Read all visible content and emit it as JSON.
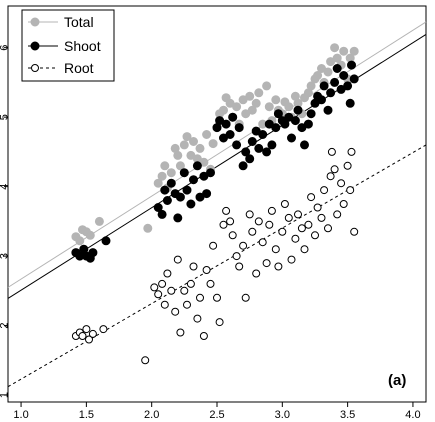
{
  "chart_data": {
    "type": "scatter",
    "title": "",
    "xlabel": "",
    "ylabel": "",
    "xlim": [
      0.9,
      4.1
    ],
    "ylim": [
      0.9,
      6.6
    ],
    "x_ticks": [
      "1.0",
      "1.5",
      "2.0",
      "2.5",
      "3.0",
      "3.5",
      "4.0"
    ],
    "y_ticks": [
      "1",
      "2",
      "3",
      "4",
      "5",
      "6"
    ],
    "legend_position": "top-left",
    "panel_label": "(a)",
    "series": [
      {
        "name": "Total",
        "marker": "filled-circle",
        "color": "#b4b4b4",
        "line_style": "solid",
        "line_color": "#b4b4b4",
        "fit": [
          0.9,
          2.55,
          4.1,
          6.37
        ],
        "points": [
          [
            1.42,
            3.28
          ],
          [
            1.45,
            3.22
          ],
          [
            1.47,
            3.38
          ],
          [
            1.5,
            3.35
          ],
          [
            1.53,
            3.3
          ],
          [
            1.48,
            3.1
          ],
          [
            1.6,
            3.5
          ],
          [
            1.97,
            3.4
          ],
          [
            2.05,
            4.05
          ],
          [
            2.08,
            4.15
          ],
          [
            2.1,
            4.3
          ],
          [
            2.12,
            3.98
          ],
          [
            2.15,
            4.2
          ],
          [
            2.18,
            4.55
          ],
          [
            2.2,
            4.45
          ],
          [
            2.22,
            4.3
          ],
          [
            2.25,
            4.6
          ],
          [
            2.27,
            4.72
          ],
          [
            2.3,
            4.45
          ],
          [
            2.32,
            4.65
          ],
          [
            2.35,
            4.4
          ],
          [
            2.37,
            4.55
          ],
          [
            2.4,
            4.35
          ],
          [
            2.42,
            4.75
          ],
          [
            2.45,
            4.25
          ],
          [
            2.47,
            4.62
          ],
          [
            2.5,
            4.85
          ],
          [
            2.52,
            5.05
          ],
          [
            2.55,
            5.1
          ],
          [
            2.57,
            5.28
          ],
          [
            2.6,
            5.2
          ],
          [
            2.62,
            5.0
          ],
          [
            2.65,
            5.15
          ],
          [
            2.67,
            4.9
          ],
          [
            2.7,
            5.25
          ],
          [
            2.72,
            5.05
          ],
          [
            2.75,
            5.3
          ],
          [
            2.77,
            5.1
          ],
          [
            2.8,
            5.2
          ],
          [
            2.82,
            5.35
          ],
          [
            2.85,
            4.9
          ],
          [
            2.88,
            5.45
          ],
          [
            2.9,
            5.15
          ],
          [
            2.92,
            4.95
          ],
          [
            2.95,
            5.25
          ],
          [
            2.97,
            5.1
          ],
          [
            3.0,
            5.05
          ],
          [
            3.02,
            5.22
          ],
          [
            3.05,
            5.15
          ],
          [
            3.07,
            5.0
          ],
          [
            3.1,
            5.3
          ],
          [
            3.12,
            5.2
          ],
          [
            3.15,
            5.05
          ],
          [
            3.17,
            5.28
          ],
          [
            3.2,
            5.35
          ],
          [
            3.22,
            5.45
          ],
          [
            3.25,
            5.55
          ],
          [
            3.27,
            5.6
          ],
          [
            3.3,
            5.7
          ],
          [
            3.32,
            5.5
          ],
          [
            3.35,
            5.65
          ],
          [
            3.37,
            5.8
          ],
          [
            3.4,
            6.0
          ],
          [
            3.42,
            5.85
          ],
          [
            3.45,
            5.75
          ],
          [
            3.47,
            5.95
          ],
          [
            3.5,
            5.55
          ],
          [
            3.52,
            5.85
          ],
          [
            3.55,
            5.95
          ]
        ]
      },
      {
        "name": "Shoot",
        "marker": "filled-circle",
        "color": "#000000",
        "line_style": "solid",
        "line_color": "#000000",
        "fit": [
          0.9,
          2.39,
          4.1,
          6.19
        ],
        "points": [
          [
            1.42,
            3.05
          ],
          [
            1.45,
            3.0
          ],
          [
            1.48,
            3.1
          ],
          [
            1.5,
            3.0
          ],
          [
            1.53,
            2.97
          ],
          [
            1.55,
            3.05
          ],
          [
            1.65,
            3.22
          ],
          [
            2.05,
            3.7
          ],
          [
            2.08,
            3.6
          ],
          [
            2.1,
            3.95
          ],
          [
            2.12,
            3.8
          ],
          [
            2.15,
            4.05
          ],
          [
            2.18,
            3.9
          ],
          [
            2.2,
            3.55
          ],
          [
            2.22,
            3.85
          ],
          [
            2.25,
            4.2
          ],
          [
            2.27,
            3.95
          ],
          [
            2.3,
            3.75
          ],
          [
            2.32,
            4.1
          ],
          [
            2.35,
            4.3
          ],
          [
            2.37,
            3.85
          ],
          [
            2.4,
            4.15
          ],
          [
            2.42,
            3.9
          ],
          [
            2.45,
            4.2
          ],
          [
            2.5,
            4.85
          ],
          [
            2.52,
            4.95
          ],
          [
            2.55,
            4.7
          ],
          [
            2.57,
            4.9
          ],
          [
            2.6,
            4.75
          ],
          [
            2.62,
            5.0
          ],
          [
            2.65,
            4.6
          ],
          [
            2.67,
            4.85
          ],
          [
            2.7,
            4.3
          ],
          [
            2.72,
            4.5
          ],
          [
            2.75,
            4.4
          ],
          [
            2.77,
            4.65
          ],
          [
            2.8,
            4.8
          ],
          [
            2.82,
            4.55
          ],
          [
            2.85,
            4.75
          ],
          [
            2.88,
            4.5
          ],
          [
            2.9,
            4.9
          ],
          [
            2.92,
            4.6
          ],
          [
            2.95,
            4.85
          ],
          [
            2.97,
            5.05
          ],
          [
            3.0,
            4.95
          ],
          [
            3.02,
            4.9
          ],
          [
            3.05,
            5.0
          ],
          [
            3.07,
            4.7
          ],
          [
            3.1,
            4.95
          ],
          [
            3.12,
            5.1
          ],
          [
            3.15,
            4.85
          ],
          [
            3.17,
            4.6
          ],
          [
            3.2,
            4.9
          ],
          [
            3.22,
            5.05
          ],
          [
            3.25,
            5.2
          ],
          [
            3.27,
            5.3
          ],
          [
            3.3,
            5.25
          ],
          [
            3.32,
            5.45
          ],
          [
            3.35,
            5.1
          ],
          [
            3.37,
            5.35
          ],
          [
            3.4,
            5.5
          ],
          [
            3.42,
            5.7
          ],
          [
            3.45,
            5.4
          ],
          [
            3.47,
            5.6
          ],
          [
            3.5,
            5.45
          ],
          [
            3.52,
            5.2
          ],
          [
            3.53,
            5.75
          ],
          [
            3.55,
            5.55
          ]
        ]
      },
      {
        "name": "Root",
        "marker": "open-circle",
        "color": "#000000",
        "line_style": "dashed",
        "line_color": "#000000",
        "fit": [
          0.9,
          1.12,
          4.1,
          4.6
        ],
        "points": [
          [
            1.42,
            1.85
          ],
          [
            1.45,
            1.9
          ],
          [
            1.47,
            1.85
          ],
          [
            1.5,
            1.95
          ],
          [
            1.52,
            1.8
          ],
          [
            1.55,
            1.88
          ],
          [
            1.63,
            1.95
          ],
          [
            1.95,
            1.5
          ],
          [
            2.02,
            2.55
          ],
          [
            2.05,
            2.45
          ],
          [
            2.08,
            2.6
          ],
          [
            2.1,
            2.3
          ],
          [
            2.12,
            2.75
          ],
          [
            2.15,
            2.5
          ],
          [
            2.18,
            2.2
          ],
          [
            2.2,
            2.95
          ],
          [
            2.22,
            1.9
          ],
          [
            2.25,
            2.5
          ],
          [
            2.27,
            2.3
          ],
          [
            2.3,
            2.6
          ],
          [
            2.32,
            2.85
          ],
          [
            2.35,
            2.1
          ],
          [
            2.37,
            2.4
          ],
          [
            2.4,
            1.85
          ],
          [
            2.42,
            2.8
          ],
          [
            2.45,
            2.6
          ],
          [
            2.47,
            3.15
          ],
          [
            2.5,
            2.4
          ],
          [
            2.52,
            2.05
          ],
          [
            2.55,
            3.45
          ],
          [
            2.57,
            3.65
          ],
          [
            2.6,
            3.5
          ],
          [
            2.62,
            3.3
          ],
          [
            2.65,
            3.0
          ],
          [
            2.67,
            2.85
          ],
          [
            2.7,
            3.15
          ],
          [
            2.72,
            2.4
          ],
          [
            2.75,
            3.6
          ],
          [
            2.77,
            3.35
          ],
          [
            2.8,
            2.75
          ],
          [
            2.82,
            3.5
          ],
          [
            2.85,
            3.2
          ],
          [
            2.88,
            2.9
          ],
          [
            2.9,
            3.45
          ],
          [
            2.92,
            3.65
          ],
          [
            2.95,
            3.1
          ],
          [
            2.97,
            2.85
          ],
          [
            3.0,
            3.35
          ],
          [
            3.02,
            3.75
          ],
          [
            3.05,
            3.55
          ],
          [
            3.07,
            2.95
          ],
          [
            3.1,
            3.25
          ],
          [
            3.12,
            3.6
          ],
          [
            3.15,
            3.4
          ],
          [
            3.17,
            3.1
          ],
          [
            3.2,
            3.45
          ],
          [
            3.22,
            3.85
          ],
          [
            3.25,
            3.3
          ],
          [
            3.27,
            3.7
          ],
          [
            3.3,
            3.55
          ],
          [
            3.32,
            3.95
          ],
          [
            3.35,
            3.4
          ],
          [
            3.37,
            4.15
          ],
          [
            3.38,
            4.5
          ],
          [
            3.4,
            4.25
          ],
          [
            3.42,
            3.6
          ],
          [
            3.45,
            4.05
          ],
          [
            3.47,
            3.75
          ],
          [
            3.5,
            4.3
          ],
          [
            3.52,
            3.95
          ],
          [
            3.53,
            4.5
          ],
          [
            3.55,
            3.35
          ]
        ]
      }
    ]
  }
}
